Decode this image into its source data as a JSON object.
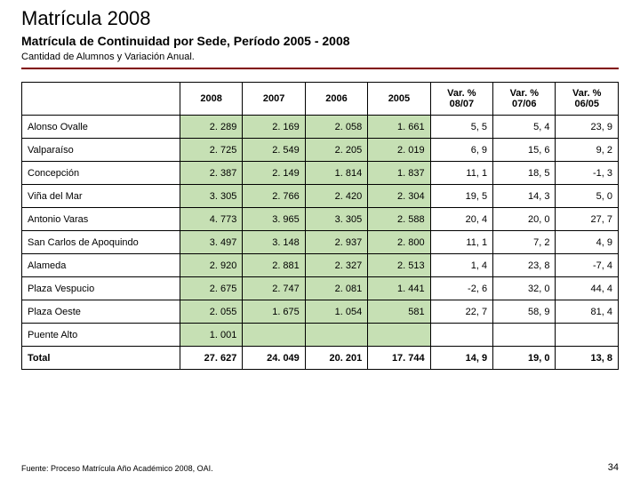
{
  "title": "Matrícula 2008",
  "subtitle": "Matrícula de Continuidad por Sede, Período 2005 - 2008",
  "subtext": "Cantidad de Alumnos y Variación Anual.",
  "footnote": "Fuente: Proceso Matrícula Año Académico 2008, OAI.",
  "pagenum": "34",
  "table": {
    "columns": [
      "2008",
      "2007",
      "2006",
      "2005",
      "Var. % 08/07",
      "Var. % 07/06",
      "Var. % 06/05"
    ],
    "shaded_cols": [
      0,
      1,
      2,
      3
    ],
    "rows": [
      {
        "label": "Alonso Ovalle",
        "cells": [
          "2. 289",
          "2. 169",
          "2. 058",
          "1. 661",
          "5, 5",
          "5, 4",
          "23, 9"
        ]
      },
      {
        "label": "Valparaíso",
        "cells": [
          "2. 725",
          "2. 549",
          "2. 205",
          "2. 019",
          "6, 9",
          "15, 6",
          "9, 2"
        ]
      },
      {
        "label": "Concepción",
        "cells": [
          "2. 387",
          "2. 149",
          "1. 814",
          "1. 837",
          "11, 1",
          "18, 5",
          "-1, 3"
        ]
      },
      {
        "label": "Viña del Mar",
        "cells": [
          "3. 305",
          "2. 766",
          "2. 420",
          "2. 304",
          "19, 5",
          "14, 3",
          "5, 0"
        ]
      },
      {
        "label": "Antonio Varas",
        "cells": [
          "4. 773",
          "3. 965",
          "3. 305",
          "2. 588",
          "20, 4",
          "20, 0",
          "27, 7"
        ]
      },
      {
        "label": "San Carlos de Apoquindo",
        "cells": [
          "3. 497",
          "3. 148",
          "2. 937",
          "2. 800",
          "11, 1",
          "7, 2",
          "4, 9"
        ]
      },
      {
        "label": "Alameda",
        "cells": [
          "2. 920",
          "2. 881",
          "2. 327",
          "2. 513",
          "1, 4",
          "23, 8",
          "-7, 4"
        ]
      },
      {
        "label": "Plaza Vespucio",
        "cells": [
          "2. 675",
          "2. 747",
          "2. 081",
          "1. 441",
          "-2, 6",
          "32, 0",
          "44, 4"
        ]
      },
      {
        "label": "Plaza Oeste",
        "cells": [
          "2. 055",
          "1. 675",
          "1. 054",
          "581",
          "22, 7",
          "58, 9",
          "81, 4"
        ]
      },
      {
        "label": "Puente Alto",
        "cells": [
          "1. 001",
          "",
          "",
          "",
          "",
          "",
          ""
        ]
      }
    ],
    "total": {
      "label": "Total",
      "cells": [
        "27. 627",
        "24. 049",
        "20. 201",
        "17. 744",
        "14, 9",
        "19, 0",
        "13, 8"
      ]
    }
  }
}
